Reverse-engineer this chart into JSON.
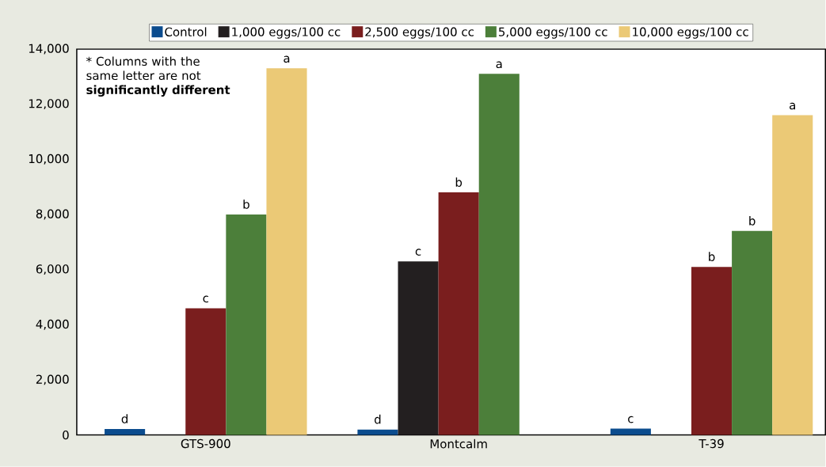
{
  "chart_data": {
    "type": "bar",
    "categories": [
      "GTS-900",
      "Montcalm",
      "T-39"
    ],
    "series": [
      {
        "name": "Control",
        "color": "#0b4c8e",
        "values": [
          220,
          200,
          230
        ],
        "value_labels": [
          "d",
          "d",
          "c"
        ]
      },
      {
        "name": "1,000 eggs/100 cc",
        "color": "#231f20",
        "values": [
          null,
          6300,
          null
        ],
        "value_labels": [
          null,
          "c",
          null
        ]
      },
      {
        "name": "2,500 eggs/100 cc",
        "color": "#7a1e1e",
        "values": [
          4600,
          8800,
          6100
        ],
        "value_labels": [
          "c",
          "b",
          "b"
        ]
      },
      {
        "name": "5,000 eggs/100 cc",
        "color": "#4c7f3a",
        "values": [
          8000,
          13100,
          7400
        ],
        "value_labels": [
          "b",
          "a",
          "b"
        ]
      },
      {
        "name": "10,000 eggs/100 cc",
        "color": "#ebc976",
        "values": [
          13300,
          null,
          11600
        ],
        "value_labels": [
          "a",
          null,
          "a"
        ]
      }
    ],
    "ylim": [
      0,
      14000
    ],
    "yticks": [
      {
        "value": 0,
        "label": "0"
      },
      {
        "value": 2000,
        "label": "2,000"
      },
      {
        "value": 4000,
        "label": "4,000"
      },
      {
        "value": 6000,
        "label": "6,000"
      },
      {
        "value": 8000,
        "label": "8,000"
      },
      {
        "value": 10000,
        "label": "10,000"
      },
      {
        "value": 12000,
        "label": "12,000"
      },
      {
        "value": 14000,
        "label": "14,000"
      }
    ],
    "legend": "top",
    "annotations": [
      "* Columns with the same letter are not **significantly different**"
    ]
  }
}
